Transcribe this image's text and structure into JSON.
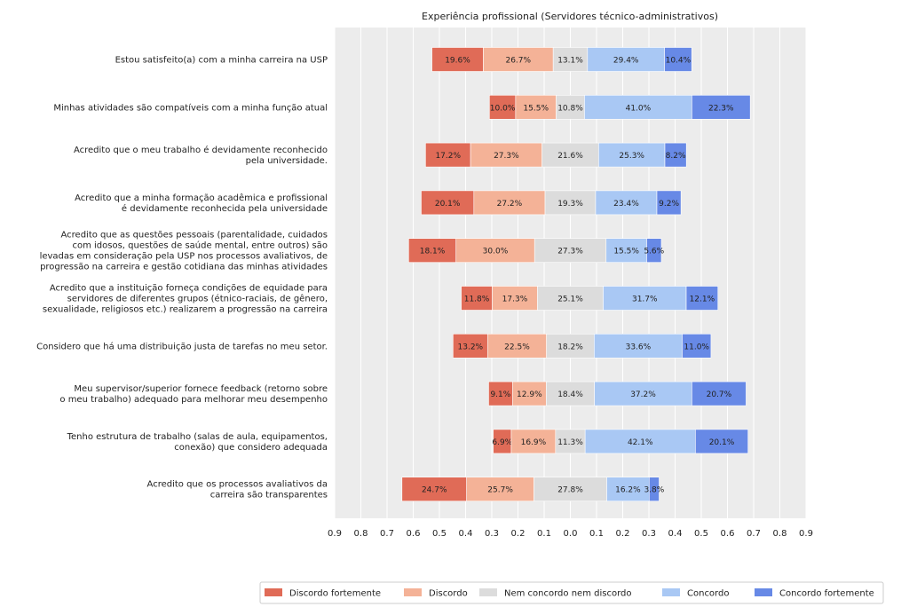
{
  "chart_data": {
    "type": "bar",
    "orientation": "horizontal-diverging-stacked",
    "title": "Experiência profissional (Servidores técnico-administrativos)",
    "x_tick_labels": [
      "0.9",
      "0.8",
      "0.7",
      "0.6",
      "0.5",
      "0.4",
      "0.3",
      "0.2",
      "0.1",
      "0.0",
      "0.1",
      "0.2",
      "0.3",
      "0.4",
      "0.5",
      "0.6",
      "0.7",
      "0.8",
      "0.9"
    ],
    "xlim": [
      -0.9,
      0.9
    ],
    "grid": true,
    "legend_position": "bottom-right",
    "categories": [
      [
        "Estou satisfeito(a) com a minha carreira na USP"
      ],
      [
        "Minhas atividades são compatíveis com a minha função atual"
      ],
      [
        "Acredito que o meu trabalho é devidamente reconhecido",
        "pela universidade."
      ],
      [
        "Acredito que a minha formação acadêmica e profissional",
        "é devidamente reconhecida pela universidade"
      ],
      [
        "Acredito que as questões pessoais (parentalidade, cuidados",
        "com idosos, questões de saúde mental, entre outros) são",
        "levadas em consideração pela USP nos processos avaliativos, de",
        "progressão na carreira e gestão cotidiana das minhas atividades"
      ],
      [
        "Acredito que a instituição forneça condições de equidade para",
        "servidores de diferentes grupos (étnico-raciais, de gênero,",
        "sexualidade, religiosos etc.) realizarem a progressão na carreira"
      ],
      [
        "Considero que há uma distribuição justa de tarefas no meu setor."
      ],
      [
        "Meu supervisor/superior fornece feedback (retorno sobre",
        "o meu trabalho) adequado para melhorar meu desempenho"
      ],
      [
        "Tenho estrutura de trabalho (salas de aula, equipamentos,",
        "conexão) que considero adequada"
      ],
      [
        "Acredito que os processos avaliativos da",
        "carreira são transparentes"
      ]
    ],
    "series": [
      {
        "name": "Discordo fortemente",
        "color": "#e06b57",
        "values": [
          19.6,
          10.0,
          17.2,
          20.1,
          18.1,
          11.8,
          13.2,
          9.1,
          6.9,
          24.7
        ],
        "labels": [
          "19.6%",
          "10.0%",
          "17.2%",
          "20.1%",
          "18.1%",
          "11.8%",
          "13.2%",
          "9.1%",
          "6.9%",
          "24.7%"
        ]
      },
      {
        "name": "Discordo",
        "color": "#f4b297",
        "values": [
          26.7,
          15.5,
          27.3,
          27.2,
          30.0,
          17.3,
          22.5,
          12.9,
          16.9,
          25.7
        ],
        "labels": [
          "26.7%",
          "15.5%",
          "27.3%",
          "27.2%",
          "30.0%",
          "17.3%",
          "22.5%",
          "12.9%",
          "16.9%",
          "25.7%"
        ]
      },
      {
        "name": "Nem concordo nem discordo",
        "color": "#dcdcdc",
        "values": [
          13.1,
          10.8,
          21.6,
          19.3,
          27.3,
          25.1,
          18.2,
          18.4,
          11.3,
          27.8
        ],
        "labels": [
          "13.1%",
          "10.8%",
          "21.6%",
          "19.3%",
          "27.3%",
          "25.1%",
          "18.2%",
          "18.4%",
          "11.3%",
          "27.8%"
        ]
      },
      {
        "name": "Concordo",
        "color": "#a9c8f4",
        "values": [
          29.4,
          41.0,
          25.3,
          23.4,
          15.5,
          31.7,
          33.6,
          37.2,
          42.1,
          16.2
        ],
        "labels": [
          "29.4%",
          "41.0%",
          "25.3%",
          "23.4%",
          "15.5%",
          "31.7%",
          "33.6%",
          "37.2%",
          "42.1%",
          "16.2%"
        ]
      },
      {
        "name": "Concordo fortemente",
        "color": "#6789e6",
        "values": [
          10.4,
          22.3,
          8.2,
          9.2,
          5.6,
          12.1,
          11.0,
          20.7,
          20.1,
          3.8
        ],
        "labels": [
          "10.4%",
          "22.3%",
          "8.2%",
          "9.2%",
          "5.6%",
          "12.1%",
          "11.0%",
          "20.7%",
          "20.1%",
          "3.8%"
        ]
      }
    ]
  }
}
